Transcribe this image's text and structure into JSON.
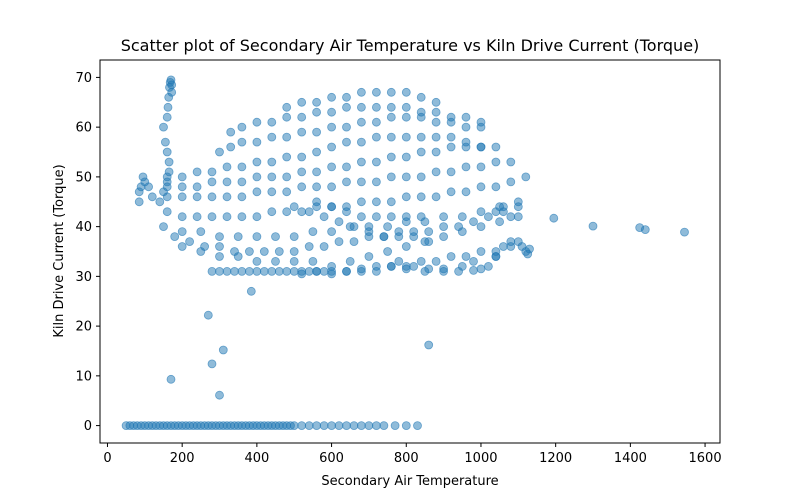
{
  "chart_data": {
    "type": "scatter",
    "title": "Scatter plot of Secondary Air Temperature vs Kiln Drive Current (Torque)",
    "xlabel": "Secondary Air Temperature",
    "ylabel": "Kiln Drive Current (Torque)",
    "xlim": [
      -20,
      1640
    ],
    "ylim": [
      -3.5,
      73.5
    ],
    "xticks": [
      0,
      200,
      400,
      600,
      800,
      1000,
      1200,
      1400,
      1600
    ],
    "yticks": [
      0,
      10,
      20,
      30,
      40,
      50,
      60,
      70
    ],
    "grid": false,
    "legend": "none",
    "marker_color": "#1f77b4",
    "marker_alpha": 0.5,
    "series": [
      {
        "x": [
          50,
          60,
          70,
          80,
          90,
          100,
          110,
          120,
          130,
          140,
          150,
          160,
          170,
          180,
          190,
          200,
          210,
          220,
          230,
          240,
          250,
          260,
          270,
          280,
          290,
          300,
          310,
          320,
          330,
          340,
          350,
          360,
          370,
          380,
          390,
          400,
          410,
          420,
          430,
          440,
          450,
          460,
          470,
          480,
          490,
          500,
          520,
          540,
          560,
          580,
          600,
          620,
          640,
          660,
          680,
          700,
          720,
          740,
          770,
          800,
          830,
          170,
          270,
          280,
          310,
          300,
          860,
          385,
          85,
          85,
          90,
          95,
          100,
          110,
          120,
          140,
          150,
          160,
          165,
          165,
          160,
          155,
          150,
          160,
          162,
          164,
          166,
          168,
          170,
          172,
          172,
          200,
          250,
          300,
          350,
          400,
          450,
          500,
          550,
          600,
          650,
          700,
          750,
          800,
          850,
          900,
          950,
          1000,
          1050,
          1100,
          180,
          220,
          260,
          300,
          340,
          380,
          420,
          460,
          500,
          540,
          580,
          620,
          660,
          700,
          740,
          780,
          820,
          860,
          900,
          940,
          980,
          1020,
          1060,
          1100,
          150,
          200,
          250,
          300,
          350,
          400,
          450,
          500,
          550,
          600,
          650,
          700,
          750,
          800,
          850,
          900,
          950,
          1000,
          1050,
          1100,
          160,
          200,
          240,
          280,
          320,
          360,
          400,
          440,
          480,
          520,
          560,
          600,
          640,
          680,
          720,
          760,
          800,
          840,
          880,
          920,
          960,
          1000,
          1040,
          1080,
          1120,
          160,
          200,
          240,
          280,
          320,
          360,
          400,
          440,
          480,
          520,
          560,
          600,
          640,
          680,
          720,
          760,
          800,
          840,
          880,
          920,
          960,
          1000,
          1040,
          1080,
          160,
          200,
          240,
          280,
          320,
          360,
          400,
          440,
          480,
          520,
          560,
          600,
          640,
          680,
          720,
          760,
          800,
          840,
          880,
          920,
          960,
          1000,
          1040,
          160,
          200,
          240,
          280,
          320,
          360,
          400,
          440,
          480,
          520,
          560,
          600,
          640,
          680,
          720,
          760,
          800,
          840,
          880,
          920,
          960,
          1000,
          300,
          330,
          360,
          400,
          440,
          480,
          520,
          560,
          600,
          640,
          680,
          720,
          760,
          800,
          840,
          880,
          920,
          960,
          1000,
          330,
          360,
          400,
          440,
          480,
          520,
          560,
          600,
          640,
          680,
          720,
          760,
          800,
          840,
          880,
          920,
          960,
          1000,
          280,
          300,
          320,
          340,
          360,
          380,
          400,
          420,
          440,
          460,
          480,
          500,
          520,
          540,
          560,
          580,
          600,
          640,
          680,
          720,
          760,
          800,
          840,
          880,
          920,
          960,
          1000,
          1040,
          1080,
          480,
          520,
          560,
          600,
          640,
          680,
          720,
          760,
          800,
          840,
          880,
          500,
          540,
          580,
          620,
          660,
          700,
          740,
          780,
          820,
          860,
          560,
          600,
          640,
          680,
          720,
          760,
          800,
          840,
          1040,
          1060,
          1080,
          1100,
          1110,
          1120,
          1125,
          1130,
          1195,
          1300,
          1425,
          1440,
          1545,
          780,
          820,
          860,
          900,
          940,
          980,
          1000,
          1020,
          1040,
          1060,
          1080,
          520,
          560,
          600,
          640,
          680,
          720,
          760,
          800,
          850,
          900,
          950,
          980,
          1040
        ],
        "y": [
          0,
          0,
          0,
          0,
          0,
          0,
          0,
          0,
          0,
          0,
          0,
          0,
          0,
          0,
          0,
          0,
          0,
          0,
          0,
          0,
          0,
          0,
          0,
          0,
          0,
          0,
          0,
          0,
          0,
          0,
          0,
          0,
          0,
          0,
          0,
          0,
          0,
          0,
          0,
          0,
          0,
          0,
          0,
          0,
          0,
          0,
          0,
          0,
          0,
          0,
          0,
          0,
          0,
          0,
          0,
          0,
          0,
          0,
          0,
          0,
          0,
          9.3,
          22.2,
          12.4,
          15.2,
          6.1,
          16.2,
          27,
          45,
          47,
          48,
          50,
          49,
          48,
          46,
          45,
          47,
          49,
          51,
          53,
          55,
          57,
          60,
          62,
          64,
          66,
          68,
          69,
          69.5,
          68.5,
          67,
          36,
          35,
          34,
          34,
          33,
          33,
          33,
          33,
          32,
          33,
          34,
          35,
          36,
          37,
          38,
          39,
          40,
          41,
          42,
          38,
          37,
          36,
          36,
          35,
          35,
          35,
          35,
          35,
          36,
          36,
          37,
          37,
          38,
          38,
          39,
          39,
          39,
          40,
          40,
          41,
          42,
          43,
          44,
          40,
          39,
          39,
          38,
          38,
          38,
          38,
          38,
          39,
          39,
          40,
          40,
          40,
          41,
          41,
          42,
          42,
          43,
          44,
          45,
          43,
          42,
          42,
          42,
          42,
          42,
          42,
          43,
          43,
          43,
          44,
          44,
          44,
          45,
          45,
          45,
          46,
          46,
          46,
          47,
          47,
          48,
          48,
          49,
          50,
          46,
          46,
          46,
          46,
          46,
          46,
          47,
          47,
          47,
          48,
          48,
          48,
          49,
          49,
          49,
          50,
          50,
          50,
          51,
          51,
          52,
          52,
          53,
          53,
          48,
          48,
          48,
          49,
          49,
          49,
          50,
          50,
          50,
          51,
          51,
          52,
          52,
          53,
          53,
          54,
          54,
          55,
          55,
          56,
          56,
          56,
          56,
          50,
          50,
          51,
          51,
          52,
          52,
          53,
          53,
          54,
          54,
          55,
          56,
          57,
          57,
          58,
          58,
          58,
          58,
          58,
          58,
          57,
          56,
          55,
          56,
          57,
          57,
          58,
          58,
          59,
          59,
          60,
          60,
          61,
          61,
          62,
          62,
          62,
          61,
          61,
          60,
          60,
          59,
          60,
          61,
          61,
          62,
          62,
          63,
          63,
          64,
          64,
          64,
          64,
          64,
          63,
          63,
          62,
          62,
          61,
          31,
          31,
          31,
          31,
          31,
          31,
          31,
          31,
          31,
          31,
          31,
          31,
          31,
          31,
          31,
          31,
          31,
          31,
          31,
          32,
          32,
          32,
          33,
          33,
          34,
          34,
          35,
          35,
          36,
          64,
          65,
          65,
          66,
          66,
          67,
          67,
          67,
          67,
          66,
          65,
          44,
          43,
          42,
          41,
          40,
          39,
          38,
          38,
          38,
          37,
          45,
          44,
          43,
          42,
          42,
          42,
          42,
          42,
          43,
          44,
          42,
          37,
          36,
          35,
          34.5,
          35.5,
          41.7,
          40.1,
          39.8,
          39.4,
          38.9,
          33,
          32,
          31.5,
          31,
          31,
          31.2,
          31.5,
          32,
          34,
          36,
          37,
          30.5,
          31,
          30.5,
          31,
          31.5,
          31,
          32,
          31.5,
          31,
          31.5,
          32,
          33,
          34
        ]
      }
    ]
  }
}
